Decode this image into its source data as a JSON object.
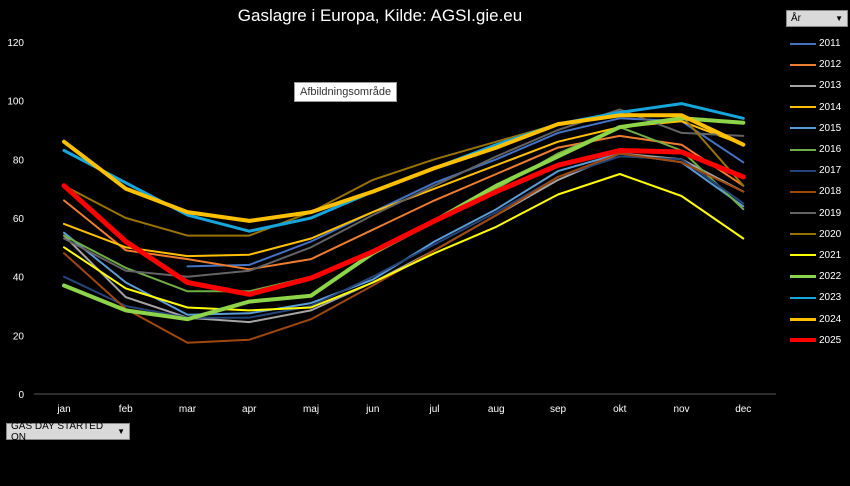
{
  "chart_data": {
    "type": "line",
    "title": "Gaslagre i Europa, Kilde: AGSI.gie.eu",
    "xlabel": "",
    "ylabel": "",
    "ylim": [
      0,
      120
    ],
    "yticks": [
      0,
      20,
      40,
      60,
      80,
      100,
      120
    ],
    "categories": [
      "jan",
      "feb",
      "mar",
      "apr",
      "maj",
      "jun",
      "jul",
      "aug",
      "sep",
      "okt",
      "nov",
      "dec"
    ],
    "series": [
      {
        "name": "2011",
        "color": "#4472c4",
        "width": 2,
        "values": [
          null,
          null,
          43.5,
          44,
          52,
          62,
          72,
          80,
          89,
          94,
          93,
          79
        ]
      },
      {
        "name": "2012",
        "color": "#ed7d31",
        "width": 2,
        "values": [
          66,
          49,
          46,
          42.5,
          46,
          56,
          66,
          75,
          84,
          88,
          85,
          71
        ]
      },
      {
        "name": "2013",
        "color": "#a5a5a5",
        "width": 2,
        "values": [
          54,
          33,
          26,
          24.5,
          28.5,
          38,
          49,
          61,
          73,
          82,
          80,
          69
        ]
      },
      {
        "name": "2014",
        "color": "#ffc000",
        "width": 2,
        "values": [
          58,
          50,
          47,
          47.5,
          53,
          62,
          70,
          78,
          86,
          91,
          93,
          85
        ]
      },
      {
        "name": "2015",
        "color": "#5b9bd5",
        "width": 2,
        "values": [
          55,
          38,
          27,
          27.5,
          31,
          39,
          52,
          63,
          76,
          82,
          79,
          64
        ]
      },
      {
        "name": "2016",
        "color": "#70ad47",
        "width": 2,
        "values": [
          54,
          43,
          35,
          35,
          40,
          49,
          59,
          70,
          82,
          91,
          83,
          63
        ]
      },
      {
        "name": "2017",
        "color": "#264478",
        "width": 2,
        "values": [
          40,
          30,
          26,
          26,
          30,
          40,
          51,
          62,
          74,
          81,
          80,
          65
        ]
      },
      {
        "name": "2018",
        "color": "#9e480e",
        "width": 2,
        "values": [
          48,
          29,
          17.5,
          18.5,
          25.5,
          37,
          49,
          61,
          74,
          82,
          79,
          69
        ]
      },
      {
        "name": "2019",
        "color": "#636363",
        "width": 2,
        "values": [
          53,
          42,
          40,
          42,
          50,
          61,
          71,
          81,
          90,
          97,
          89,
          88
        ]
      },
      {
        "name": "2020",
        "color": "#997300",
        "width": 2,
        "values": [
          71,
          60,
          54,
          54,
          62,
          73,
          80,
          86,
          92,
          95,
          95,
          71
        ]
      },
      {
        "name": "2021",
        "color": "#ffff00",
        "width": 2,
        "values": [
          50,
          36,
          29.5,
          28.5,
          29.5,
          38,
          48,
          57,
          68,
          75,
          67.5,
          53
        ]
      },
      {
        "name": "2022",
        "color": "#8ed44a",
        "width": 4,
        "values": [
          37,
          28.5,
          25.5,
          31.5,
          33.5,
          48,
          59,
          71,
          81,
          91,
          94,
          92.5
        ]
      },
      {
        "name": "2023",
        "color": "#17a6dc",
        "width": 3,
        "values": [
          83,
          72,
          61,
          55.5,
          60,
          69,
          77,
          85,
          92,
          96,
          99,
          94
        ]
      },
      {
        "name": "2024",
        "color": "#ffc000",
        "width": 4,
        "values": [
          86,
          70,
          62,
          59,
          62,
          69,
          77,
          84,
          92,
          95,
          95,
          85
        ]
      },
      {
        "name": "2025",
        "color": "#ff0000",
        "width": 5,
        "values": [
          71,
          52,
          38,
          34,
          39.5,
          48.5,
          59,
          69,
          78,
          83,
          82.5,
          74
        ]
      }
    ],
    "legend_position": "right",
    "grid": false
  },
  "ui": {
    "tooltip_text": "Afbildningsområde",
    "legend_filter_label": "År",
    "axis_filter_label": "GAS DAY STARTED ON"
  }
}
